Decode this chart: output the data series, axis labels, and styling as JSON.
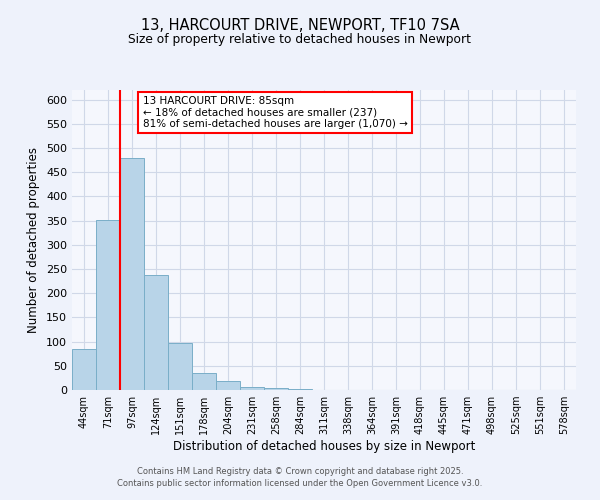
{
  "title_line1": "13, HARCOURT DRIVE, NEWPORT, TF10 7SA",
  "title_line2": "Size of property relative to detached houses in Newport",
  "xlabel": "Distribution of detached houses by size in Newport",
  "ylabel": "Number of detached properties",
  "bar_labels": [
    "44sqm",
    "71sqm",
    "97sqm",
    "124sqm",
    "151sqm",
    "178sqm",
    "204sqm",
    "231sqm",
    "258sqm",
    "284sqm",
    "311sqm",
    "338sqm",
    "364sqm",
    "391sqm",
    "418sqm",
    "445sqm",
    "471sqm",
    "498sqm",
    "525sqm",
    "551sqm",
    "578sqm"
  ],
  "bar_values": [
    85,
    352,
    480,
    238,
    97,
    35,
    18,
    7,
    4,
    2,
    1,
    0,
    0,
    0,
    0,
    0,
    0,
    0,
    0,
    0,
    1
  ],
  "bar_color": "#b8d4e8",
  "bar_edge_color": "#7aaec8",
  "red_line_x": 1.5,
  "ylim": [
    0,
    620
  ],
  "yticks": [
    0,
    50,
    100,
    150,
    200,
    250,
    300,
    350,
    400,
    450,
    500,
    550,
    600
  ],
  "annotation_title": "13 HARCOURT DRIVE: 85sqm",
  "annotation_line2": "← 18% of detached houses are smaller (237)",
  "annotation_line3": "81% of semi-detached houses are larger (1,070) →",
  "footer_line1": "Contains HM Land Registry data © Crown copyright and database right 2025.",
  "footer_line2": "Contains public sector information licensed under the Open Government Licence v3.0.",
  "bg_color": "#eef2fb",
  "plot_bg_color": "#f5f7fd",
  "grid_color": "#d0d8e8"
}
